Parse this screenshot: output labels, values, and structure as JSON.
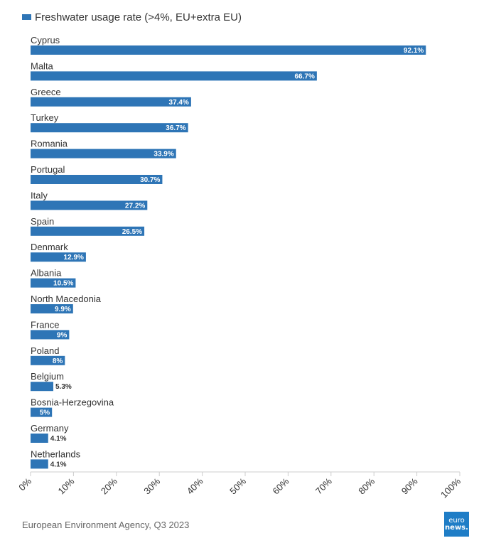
{
  "chart_data": {
    "type": "bar",
    "orientation": "horizontal",
    "categories": [
      "Cyprus",
      "Malta",
      "Greece",
      "Turkey",
      "Romania",
      "Portugal",
      "Italy",
      "Spain",
      "Denmark",
      "Albania",
      "North Macedonia",
      "France",
      "Poland",
      "Belgium",
      "Bosnia-Herzegovina",
      "Germany",
      "Netherlands"
    ],
    "series": [
      {
        "name": "Freshwater usage rate (>4%, EU+extra EU)",
        "values": [
          92.1,
          66.7,
          37.4,
          36.7,
          33.9,
          30.7,
          27.2,
          26.5,
          12.9,
          10.5,
          9.9,
          9,
          8,
          5.3,
          5,
          4.1,
          4.1
        ],
        "data_labels": [
          "92.1%",
          "66.7%",
          "37.4%",
          "36.7%",
          "33.9%",
          "30.7%",
          "27.2%",
          "26.5%",
          "12.9%",
          "10.5%",
          "9.9%",
          "9%",
          "8%",
          "5.3%",
          "5%",
          "4.1%",
          "4.1%"
        ]
      }
    ],
    "xlim": [
      0,
      100
    ],
    "x_ticks": [
      "0%",
      "10%",
      "20%",
      "30%",
      "40%",
      "50%",
      "60%",
      "70%",
      "80%",
      "90%",
      "100%"
    ],
    "grid": false,
    "legend_position": "top-left",
    "bar_color": "#2e75b6"
  },
  "footer": {
    "source": "European Environment Agency, Q3 2023",
    "logo_line1": "euro",
    "logo_line2": "news."
  },
  "colors": {
    "bar": "#2e75b6",
    "logo_bg": "#1f7dc6"
  }
}
